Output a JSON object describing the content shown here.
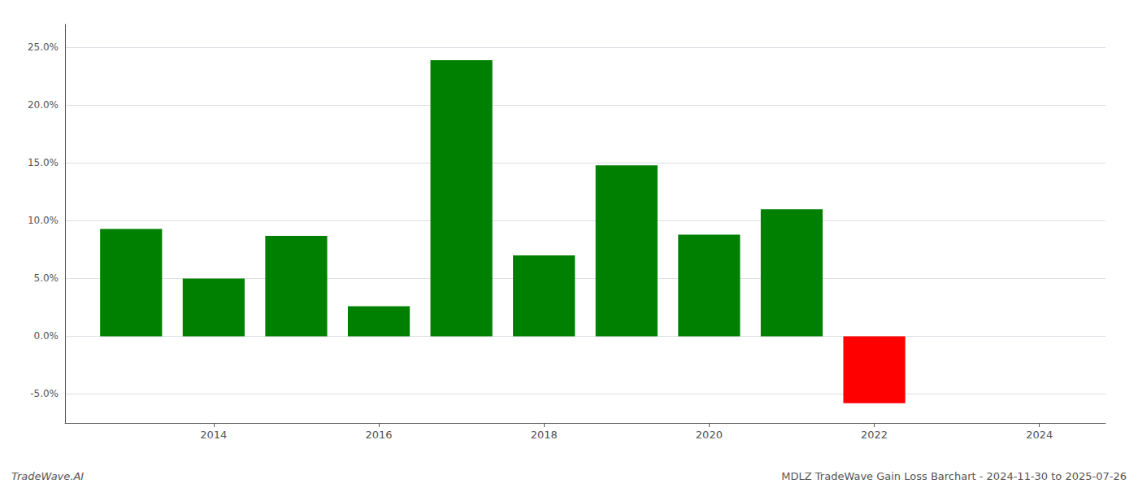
{
  "chart_data": {
    "type": "bar",
    "x": [
      2013,
      2014,
      2015,
      2016,
      2017,
      2018,
      2019,
      2020,
      2021,
      2022,
      2023
    ],
    "values": [
      0.093,
      0.05,
      0.087,
      0.026,
      0.239,
      0.07,
      0.148,
      0.088,
      0.11,
      -0.058,
      0.0
    ],
    "colors": [
      "#008000",
      "#008000",
      "#008000",
      "#008000",
      "#008000",
      "#008000",
      "#008000",
      "#008000",
      "#008000",
      "#ff0000",
      "#ffffff"
    ],
    "xlim": [
      2012.2,
      2024.8
    ],
    "xticks": [
      2014,
      2016,
      2018,
      2020,
      2022,
      2024
    ],
    "ylim": [
      -0.075,
      0.27
    ],
    "yticks": [
      {
        "value": -0.05,
        "label": "-5.0%"
      },
      {
        "value": 0.0,
        "label": "0.0%"
      },
      {
        "value": 0.05,
        "label": "5.0%"
      },
      {
        "value": 0.1,
        "label": "10.0%"
      },
      {
        "value": 0.15,
        "label": "15.0%"
      },
      {
        "value": 0.2,
        "label": "20.0%"
      },
      {
        "value": 0.25,
        "label": "25.0%"
      }
    ],
    "grid": true,
    "annotations": [
      "TradeWave.AI",
      "MDLZ TradeWave Gain Loss Barchart - 2024-11-30 to 2025-07-26"
    ]
  }
}
